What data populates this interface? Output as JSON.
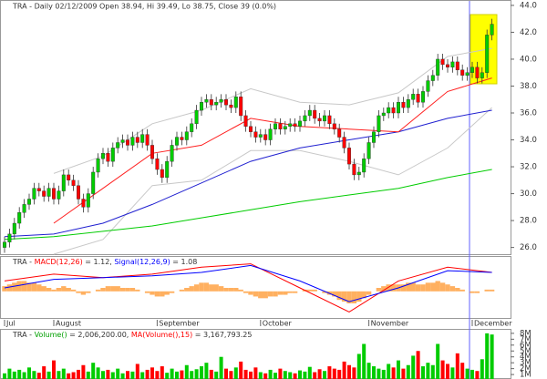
{
  "chart_data": [
    {
      "type": "candlestick",
      "title": "TRA - Daily 02/12/2009 Open 38.94, Hi 39.49, Lo 38.75, Close 39 (0.0%)",
      "categories": [
        "Jul",
        null,
        null,
        null,
        null,
        null,
        null,
        null,
        null,
        null,
        "August",
        null,
        null,
        null,
        null,
        null,
        null,
        null,
        null,
        null,
        null,
        null,
        null,
        null,
        null,
        null,
        null,
        null,
        null,
        null,
        null,
        "September",
        null,
        null,
        null,
        null,
        null,
        null,
        null,
        null,
        null,
        null,
        null,
        null,
        null,
        null,
        null,
        null,
        null,
        null,
        null,
        null,
        "October",
        null,
        null,
        null,
        null,
        null,
        null,
        null,
        null,
        null,
        null,
        null,
        null,
        null,
        null,
        null,
        null,
        null,
        null,
        null,
        null,
        null,
        "November",
        null,
        null,
        null,
        null,
        null,
        null,
        null,
        null,
        null,
        null,
        null,
        null,
        null,
        null,
        null,
        null,
        null,
        null,
        null,
        null,
        "December",
        null,
        null,
        null,
        null
      ],
      "open": [
        26.0,
        26.4,
        27.0,
        27.8,
        28.6,
        29.2,
        29.6,
        30.4,
        30.2,
        29.8,
        30.4,
        29.6,
        30.2,
        31.4,
        31.0,
        30.6,
        29.6,
        29.0,
        30.0,
        31.6,
        32.6,
        33.0,
        32.4,
        33.4,
        33.8,
        34.0,
        33.6,
        34.2,
        33.8,
        34.4,
        33.6,
        32.6,
        31.8,
        31.2,
        32.4,
        33.6,
        34.2,
        34.0,
        34.6,
        35.2,
        36.2,
        36.8,
        37.0,
        36.6,
        36.8,
        37.0,
        36.6,
        36.4,
        37.2,
        35.8,
        35.0,
        34.6,
        34.2,
        34.4,
        34.0,
        34.8,
        35.2,
        34.8,
        35.0,
        35.2,
        35.0,
        35.4,
        35.8,
        36.2,
        35.6,
        35.4,
        35.8,
        35.2,
        34.8,
        34.2,
        33.4,
        32.2,
        31.4,
        31.6,
        32.6,
        33.8,
        34.6,
        35.8,
        36.0,
        36.4,
        36.0,
        36.8,
        36.4,
        37.0,
        37.4,
        36.8,
        37.6,
        38.4,
        38.8,
        40.0,
        39.6,
        39.4,
        39.8,
        39.2,
        38.8,
        39.0,
        39.4,
        38.6,
        39.0,
        41.8
      ],
      "high": [
        26.8,
        27.4,
        28.2,
        29.0,
        29.6,
        30.0,
        30.8,
        30.8,
        30.6,
        30.8,
        30.8,
        30.6,
        31.8,
        31.8,
        31.4,
        31.0,
        30.0,
        30.4,
        32.0,
        33.0,
        33.4,
        33.4,
        33.8,
        34.2,
        34.4,
        34.4,
        34.6,
        34.6,
        34.8,
        34.8,
        34.0,
        33.0,
        32.2,
        32.8,
        34.0,
        34.6,
        34.6,
        35.0,
        35.6,
        36.6,
        37.2,
        37.4,
        37.4,
        37.2,
        37.4,
        37.4,
        37.0,
        37.6,
        37.6,
        36.2,
        35.4,
        35.0,
        34.8,
        34.8,
        35.2,
        35.6,
        35.6,
        35.4,
        35.6,
        35.6,
        35.8,
        36.2,
        36.6,
        36.6,
        36.0,
        36.2,
        36.2,
        35.6,
        35.2,
        34.6,
        33.8,
        32.6,
        32.0,
        33.0,
        34.2,
        35.0,
        36.2,
        36.4,
        36.8,
        36.8,
        37.2,
        37.2,
        37.4,
        37.8,
        37.8,
        38.0,
        38.8,
        39.2,
        40.4,
        40.4,
        40.0,
        40.2,
        40.2,
        39.6,
        39.4,
        39.8,
        39.8,
        39.4,
        42.2,
        43.0
      ],
      "low": [
        25.6,
        26.0,
        26.6,
        27.4,
        28.2,
        28.8,
        29.2,
        29.8,
        29.4,
        29.4,
        29.2,
        29.2,
        29.8,
        30.6,
        30.2,
        29.2,
        28.6,
        28.6,
        29.6,
        31.2,
        32.2,
        32.0,
        32.0,
        33.0,
        33.4,
        33.2,
        33.2,
        33.4,
        33.4,
        33.2,
        32.2,
        31.4,
        30.8,
        30.8,
        32.0,
        33.2,
        33.6,
        33.6,
        34.2,
        34.8,
        35.8,
        36.4,
        36.2,
        36.2,
        36.4,
        36.2,
        36.0,
        36.0,
        35.4,
        34.6,
        34.2,
        33.8,
        33.8,
        33.6,
        33.6,
        34.4,
        34.4,
        34.4,
        34.6,
        34.6,
        34.6,
        35.0,
        35.4,
        35.2,
        35.0,
        35.0,
        34.8,
        34.4,
        33.8,
        33.0,
        31.8,
        31.0,
        31.0,
        31.2,
        32.2,
        33.4,
        34.2,
        35.4,
        35.6,
        35.6,
        35.6,
        36.0,
        36.0,
        36.6,
        36.4,
        36.4,
        37.2,
        38.0,
        38.4,
        39.2,
        39.0,
        39.0,
        38.8,
        38.4,
        38.4,
        38.6,
        38.2,
        38.2,
        38.6,
        41.4
      ],
      "close": [
        26.4,
        27.0,
        27.8,
        28.6,
        29.2,
        29.6,
        30.4,
        30.2,
        29.8,
        30.4,
        29.6,
        30.2,
        31.4,
        31.0,
        30.6,
        29.6,
        29.0,
        30.0,
        31.6,
        32.6,
        33.0,
        32.4,
        33.4,
        33.8,
        34.0,
        33.6,
        34.2,
        33.8,
        34.4,
        33.6,
        32.6,
        31.8,
        31.2,
        32.4,
        33.6,
        34.2,
        34.0,
        34.6,
        35.2,
        36.2,
        36.8,
        37.0,
        36.6,
        36.8,
        37.0,
        36.6,
        36.4,
        37.2,
        35.8,
        35.0,
        34.6,
        34.2,
        34.4,
        34.0,
        34.8,
        35.2,
        34.8,
        35.0,
        35.2,
        35.0,
        35.4,
        35.8,
        36.2,
        35.6,
        35.4,
        35.8,
        35.2,
        34.8,
        34.2,
        33.4,
        32.2,
        31.4,
        31.6,
        32.6,
        33.8,
        34.6,
        35.8,
        36.0,
        36.4,
        36.0,
        36.8,
        36.4,
        37.0,
        37.4,
        36.8,
        37.6,
        38.4,
        38.8,
        40.0,
        39.6,
        39.4,
        39.8,
        39.2,
        38.8,
        39.0,
        39.4,
        38.6,
        39.0,
        41.8,
        42.6
      ],
      "up_color": "#00cc00",
      "down_color": "#ff0000",
      "overlays": [
        {
          "color": "#c8c8c8",
          "x": [
            10,
            20,
            30,
            40,
            50,
            60,
            70,
            80,
            90,
            99
          ],
          "values": [
            31.5,
            32.8,
            35.2,
            36.2,
            37.8,
            36.8,
            36.6,
            37.5,
            40.2,
            40.8
          ]
        },
        {
          "color": "#c8c8c8",
          "x": [
            10,
            20,
            30,
            40,
            50,
            60,
            70,
            80,
            90,
            99
          ],
          "values": [
            25.5,
            26.6,
            30.6,
            31.0,
            33.2,
            33.2,
            32.4,
            31.4,
            33.4,
            36.4
          ]
        },
        {
          "color": "#00cc00",
          "x": [
            0,
            10,
            20,
            30,
            40,
            50,
            60,
            70,
            80,
            90,
            99
          ],
          "values": [
            26.6,
            26.8,
            27.2,
            27.6,
            28.2,
            28.8,
            29.4,
            29.9,
            30.4,
            31.2,
            31.8
          ]
        },
        {
          "color": "#2020d0",
          "x": [
            0,
            10,
            20,
            30,
            40,
            50,
            60,
            70,
            80,
            90,
            99
          ],
          "values": [
            26.8,
            27.0,
            27.8,
            29.2,
            30.8,
            32.4,
            33.4,
            34.0,
            34.6,
            35.6,
            36.2
          ]
        },
        {
          "color": "#ff2020",
          "x": [
            10,
            20,
            30,
            40,
            50,
            60,
            70,
            80,
            90,
            99
          ],
          "values": [
            27.8,
            30.4,
            33.0,
            33.6,
            35.6,
            35.0,
            34.8,
            34.6,
            37.6,
            38.6
          ]
        }
      ],
      "ylim": [
        25.5,
        44.4
      ],
      "yticks": [
        {
          "value": 26,
          "label": "26.0"
        },
        {
          "value": 28,
          "label": "28.0"
        },
        {
          "value": 30,
          "label": "30.0"
        },
        {
          "value": 32,
          "label": "32.0"
        },
        {
          "value": 34,
          "label": "34.0"
        },
        {
          "value": 36,
          "label": "36.0"
        },
        {
          "value": 38,
          "label": "38.0"
        },
        {
          "value": 40,
          "label": "40.0"
        },
        {
          "value": 42,
          "label": "42.0"
        },
        {
          "value": 44,
          "label": "44.0"
        }
      ],
      "grid": false
    },
    {
      "type": "macd",
      "title_parts": [
        {
          "text": "TRA - ",
          "color": "#333333"
        },
        {
          "text": "MACD(12,26)",
          "color": "#ff0000"
        },
        {
          "text": " = 1.12, ",
          "color": "#333333"
        },
        {
          "text": "Signal(12,26,9)",
          "color": "#0000ff"
        },
        {
          "text": " = 1.08",
          "color": "#333333"
        }
      ],
      "histogram": {
        "color": "#ffb060",
        "values": [
          0.3,
          0.4,
          0.5,
          0.6,
          0.6,
          0.5,
          0.5,
          0.4,
          0.3,
          0.2,
          0.1,
          0.2,
          0.3,
          0.2,
          0.1,
          -0.1,
          -0.2,
          -0.1,
          0.0,
          0.1,
          0.2,
          0.3,
          0.3,
          0.3,
          0.2,
          0.2,
          0.2,
          0.1,
          0.0,
          -0.1,
          -0.2,
          -0.3,
          -0.3,
          -0.2,
          -0.1,
          0.0,
          0.1,
          0.2,
          0.3,
          0.4,
          0.5,
          0.5,
          0.4,
          0.4,
          0.3,
          0.2,
          0.2,
          0.2,
          0.1,
          -0.1,
          -0.2,
          -0.3,
          -0.4,
          -0.4,
          -0.3,
          -0.3,
          -0.2,
          -0.2,
          -0.1,
          -0.1,
          0.0,
          0.1,
          0.1,
          0.1,
          0.0,
          -0.1,
          -0.2,
          -0.3,
          -0.5,
          -0.6,
          -0.7,
          -0.7,
          -0.6,
          -0.4,
          -0.2,
          0.0,
          0.2,
          0.3,
          0.4,
          0.4,
          0.4,
          0.4,
          0.5,
          0.5,
          0.4,
          0.4,
          0.5,
          0.5,
          0.6,
          0.5,
          0.4,
          0.3,
          0.2,
          0.1,
          0.0,
          -0.1,
          -0.1,
          0.0,
          0.1,
          0.1
        ]
      },
      "series": [
        {
          "color": "#ff0000",
          "x": [
            0,
            10,
            20,
            30,
            40,
            50,
            60,
            70,
            80,
            90,
            99
          ],
          "values": [
            0.6,
            1.0,
            0.8,
            1.0,
            1.4,
            1.6,
            0.2,
            -1.2,
            0.6,
            1.4,
            1.1
          ]
        },
        {
          "color": "#0000ff",
          "x": [
            0,
            10,
            20,
            30,
            40,
            50,
            60,
            70,
            80,
            90,
            99
          ],
          "values": [
            0.2,
            0.7,
            0.8,
            0.9,
            1.1,
            1.5,
            0.6,
            -0.6,
            0.2,
            1.2,
            1.1
          ]
        }
      ],
      "ylim": [
        -1.6,
        2.0
      ]
    },
    {
      "type": "volume",
      "title_parts": [
        {
          "text": "TRA - ",
          "color": "#333333"
        },
        {
          "text": "Volume()",
          "color": "#00a000"
        },
        {
          "text": " = 2,006,200.00, ",
          "color": "#333333"
        },
        {
          "text": "MA(Volume(),15)",
          "color": "#ff0000"
        },
        {
          "text": " = 3,167,793.25",
          "color": "#333333"
        }
      ],
      "values": [
        1200000.0,
        2000000.0,
        1500000.0,
        1800000.0,
        1400000.0,
        2200000.0,
        1600000.0,
        1300000.0,
        2400000.0,
        1500000.0,
        3400000.0,
        1600000.0,
        2000000.0,
        1200000.0,
        1400000.0,
        1800000.0,
        2600000.0,
        1500000.0,
        3000000.0,
        2200000.0,
        1600000.0,
        1800000.0,
        1400000.0,
        2000000.0,
        1200000.0,
        1600000.0,
        1500000.0,
        2800000.0,
        1400000.0,
        1800000.0,
        2200000.0,
        1600000.0,
        2400000.0,
        1300000.0,
        2000000.0,
        1500000.0,
        1700000.0,
        2600000.0,
        1600000.0,
        1900000.0,
        2400000.0,
        3000000.0,
        1800000.0,
        1500000.0,
        4000000.0,
        2000000.0,
        1600000.0,
        2200000.0,
        3200000.0,
        1800000.0,
        1500000.0,
        2200000.0,
        1400000.0,
        1200000.0,
        1800000.0,
        1300000.0,
        2000000.0,
        1600000.0,
        1400000.0,
        1200000.0,
        1700000.0,
        1500000.0,
        2300000.0,
        1400000.0,
        1900000.0,
        1600000.0,
        2400000.0,
        2000000.0,
        1800000.0,
        3200000.0,
        2600000.0,
        2200000.0,
        4500000.0,
        6200000.0,
        3000000.0,
        2400000.0,
        2000000.0,
        1800000.0,
        2800000.0,
        2200000.0,
        3400000.0,
        2000000.0,
        2600000.0,
        4200000.0,
        5000000.0,
        2400000.0,
        3000000.0,
        2600000.0,
        6200000.0,
        3400000.0,
        2800000.0,
        2200000.0,
        4600000.0,
        3000000.0,
        2000000.0,
        1800000.0,
        1600000.0,
        3600000.0,
        8000000.0,
        7800000.0
      ],
      "ylim": [
        240000,
        8600000
      ],
      "yticks": [
        {
          "value": 1000000,
          "label": "1M"
        },
        {
          "value": 2000000,
          "label": "2M"
        },
        {
          "value": 3000000,
          "label": "3M"
        },
        {
          "value": 4000000,
          "label": "4M"
        },
        {
          "value": 5000000,
          "label": "5M"
        },
        {
          "value": 6000000,
          "label": "6M"
        },
        {
          "value": 7000000,
          "label": "7M"
        },
        {
          "value": 8000000,
          "label": "8M"
        }
      ]
    }
  ]
}
